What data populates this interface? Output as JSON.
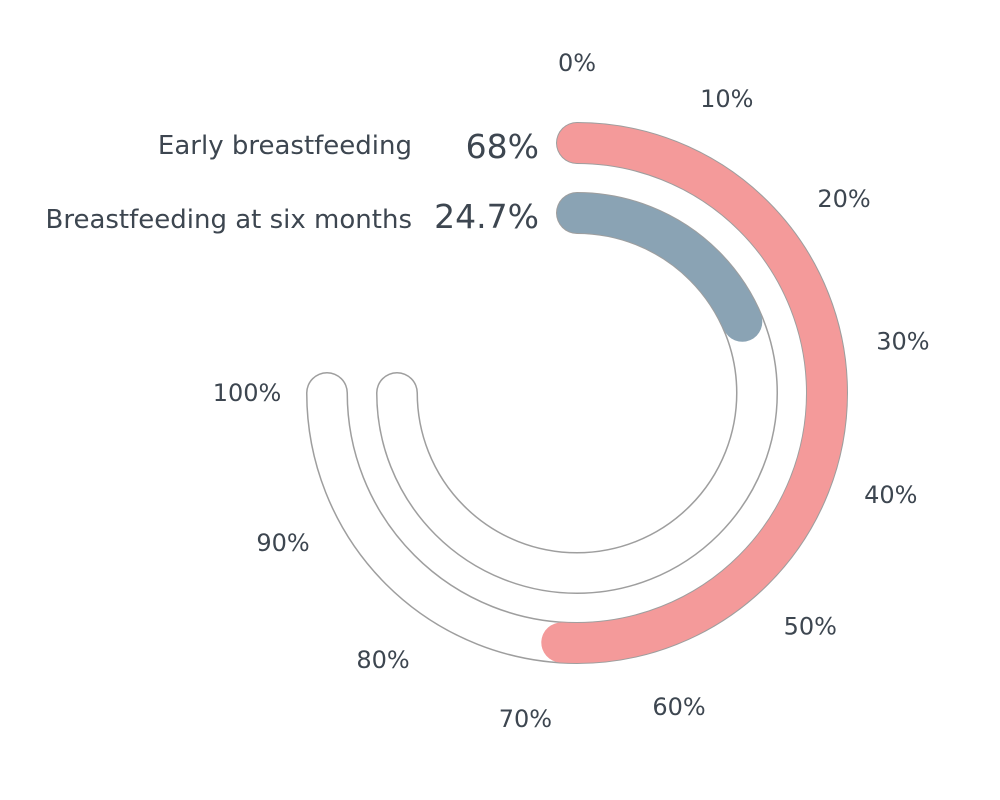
{
  "chart_data": {
    "type": "radial-bar",
    "title": "",
    "max_value": 100,
    "tick_values": [
      0,
      10,
      20,
      30,
      40,
      50,
      60,
      70,
      80,
      90,
      100
    ],
    "tick_labels": [
      "0%",
      "10%",
      "20%",
      "30%",
      "40%",
      "50%",
      "60%",
      "70%",
      "80%",
      "90%",
      "100%"
    ],
    "series": [
      {
        "name": "Early breastfeeding",
        "value": 68,
        "value_label": "68%",
        "color": "#f49a9a"
      },
      {
        "name": "Breastfeeding at six months",
        "value": 24.7,
        "value_label": "24.7%",
        "color": "#8aa3b4"
      }
    ],
    "track_outline_color": "#9e9e9e"
  }
}
